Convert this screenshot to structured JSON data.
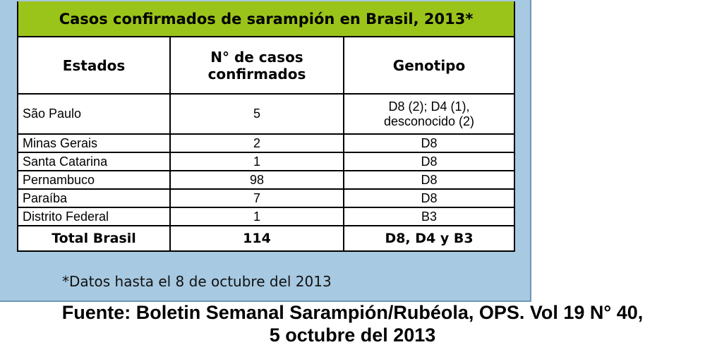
{
  "table": {
    "title": "Casos confirmados de sarampión en Brasil, 2013*",
    "headers": {
      "estados": "Estados",
      "casos_line1": "N° de casos",
      "casos_line2": "confirmados",
      "genotipo": "Genotipo"
    },
    "rows": [
      {
        "estado": "São Paulo",
        "casos": "5",
        "genotipo_line1": "D8 (2); D4 (1),",
        "genotipo_line2": "desconocido (2)"
      },
      {
        "estado": "Minas Gerais",
        "casos": "2",
        "genotipo": "D8"
      },
      {
        "estado": "Santa Catarina",
        "casos": "1",
        "genotipo": "D8"
      },
      {
        "estado": "Pernambuco",
        "casos": "98",
        "genotipo": "D8"
      },
      {
        "estado": "Paraíba",
        "casos": "7",
        "genotipo": "D8"
      },
      {
        "estado": "Distrito Federal",
        "casos": "1",
        "genotipo": "B3"
      }
    ],
    "total": {
      "label": "Total Brasil",
      "casos": "114",
      "genotipo": "D8, D4 y B3"
    }
  },
  "footnote": "*Datos hasta el 8 de octubre del 2013",
  "source": {
    "line1": "Fuente: Boletin Semanal Sarampión/Rubéola, OPS. Vol 19 N° 40,",
    "line2": "5 octubre del 2013"
  },
  "colors": {
    "panel": "#a7c9e1",
    "title_band": "#9bc41a"
  }
}
